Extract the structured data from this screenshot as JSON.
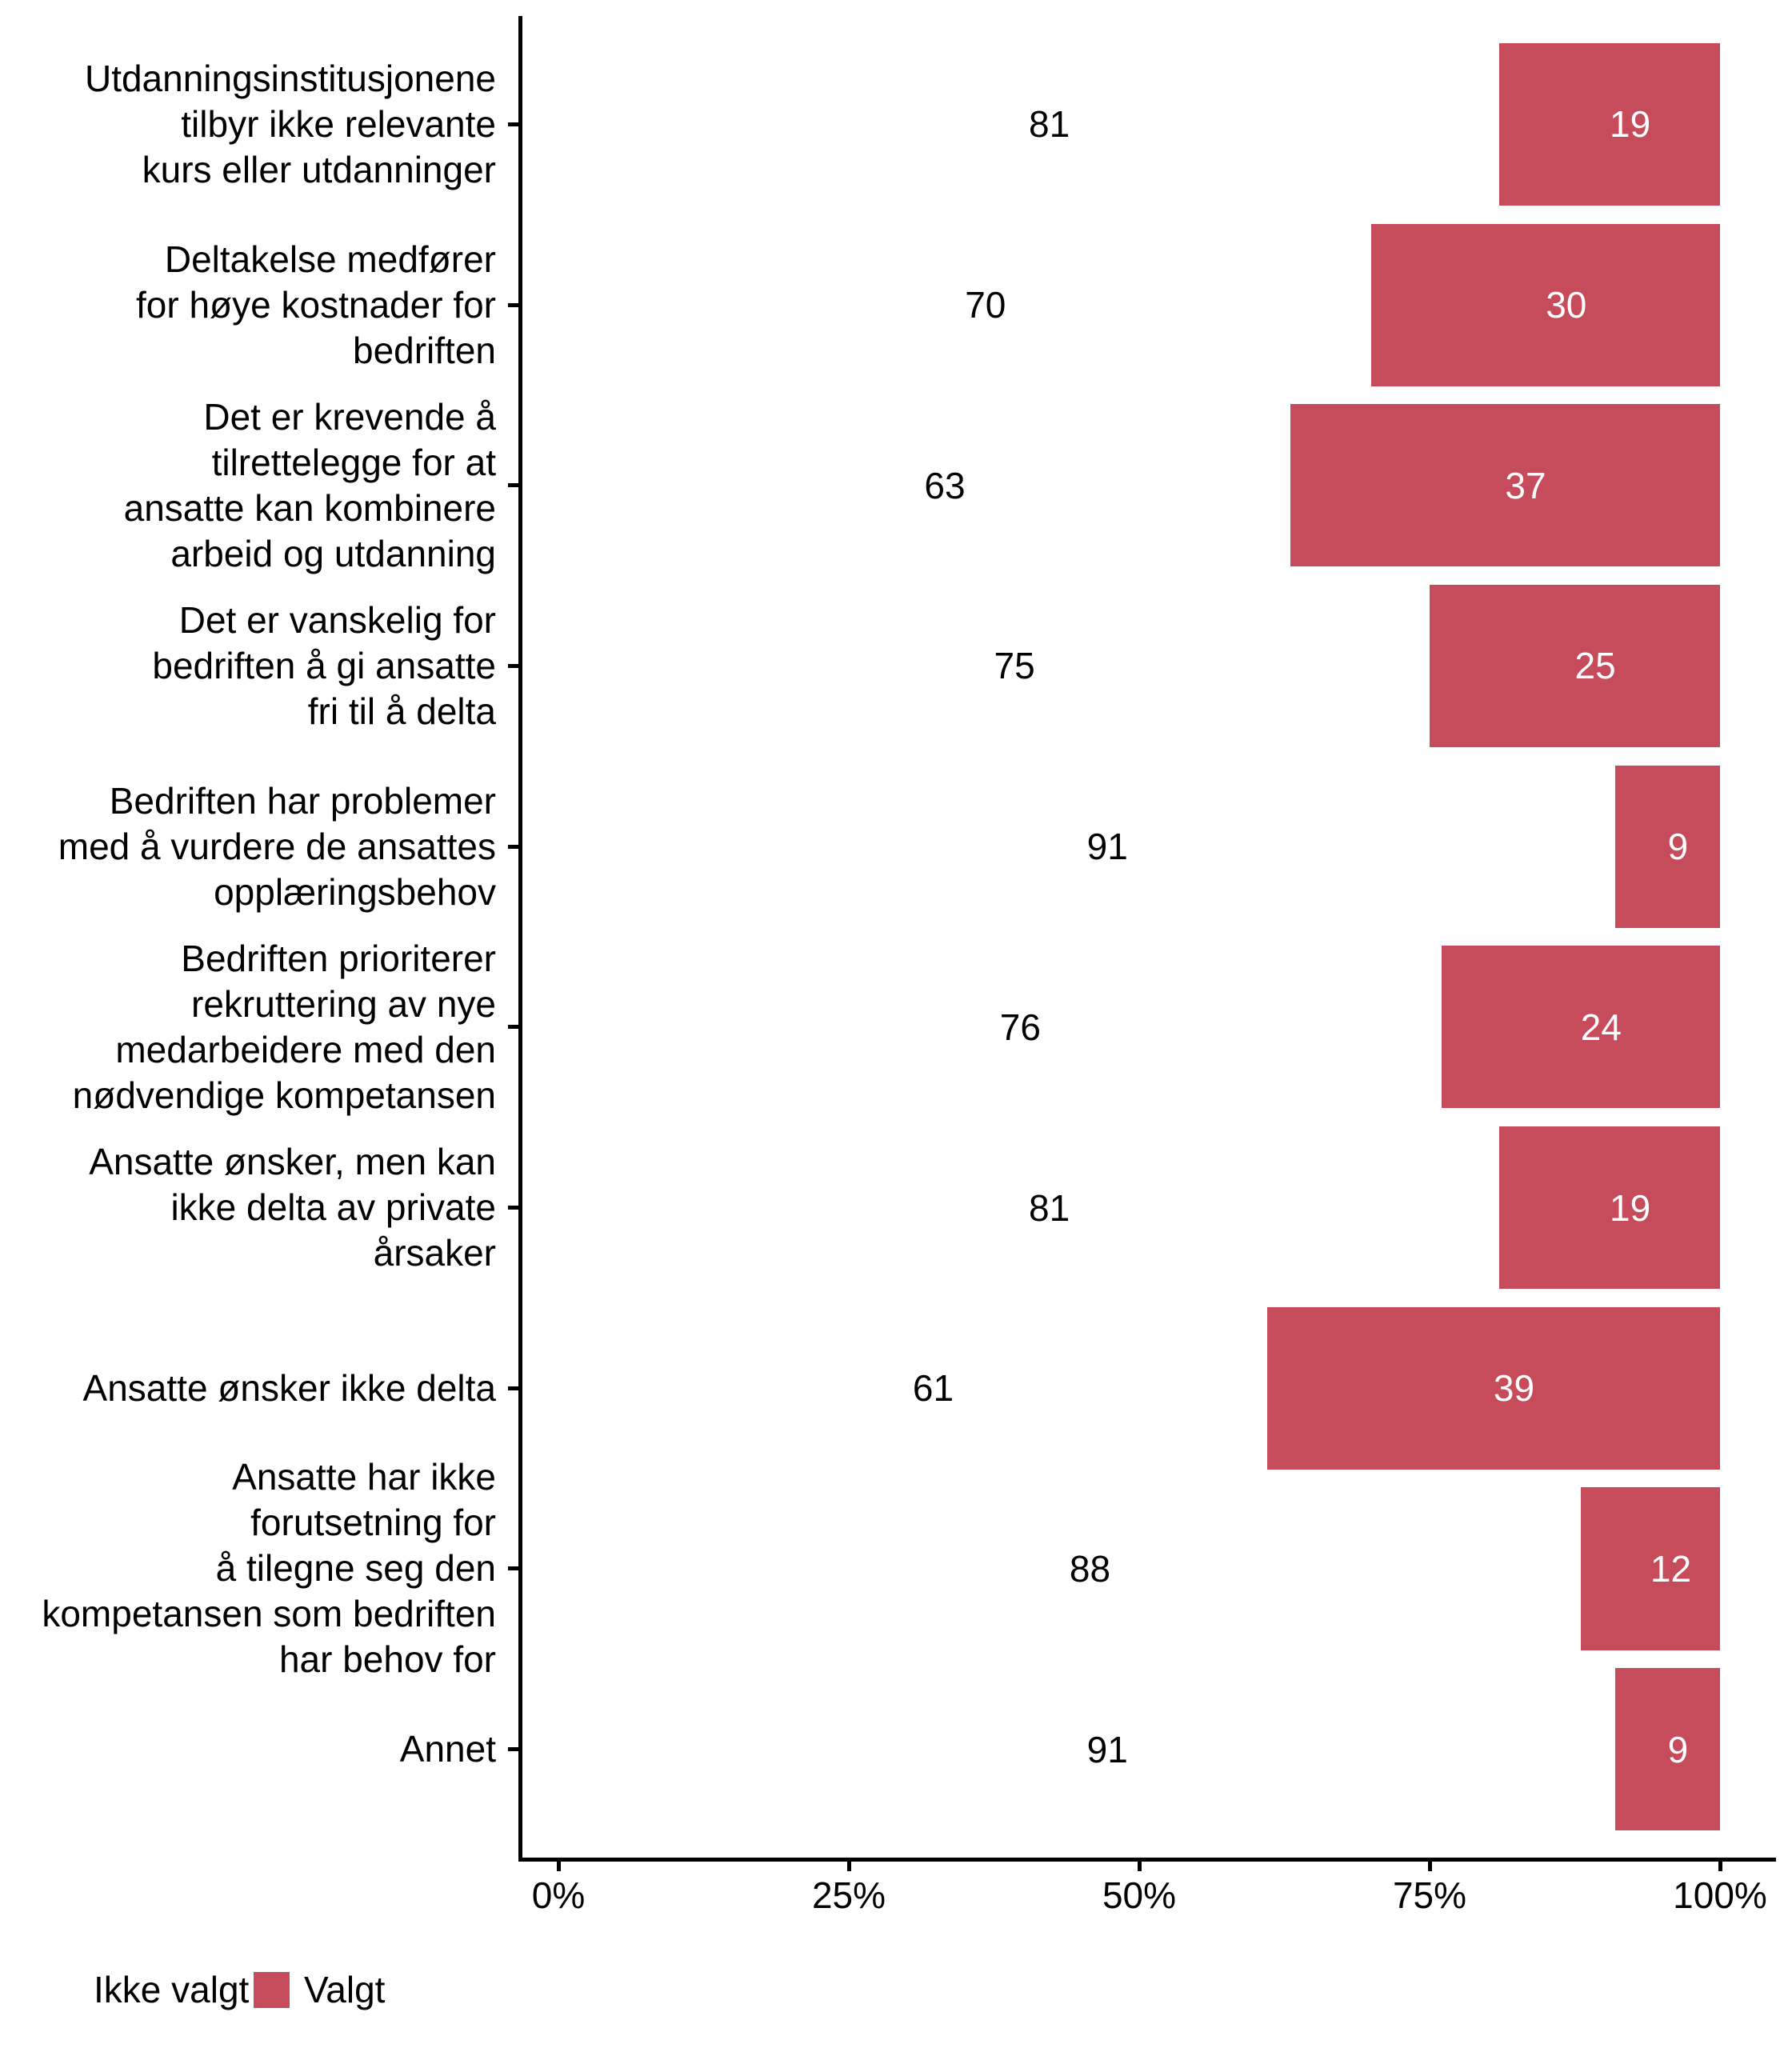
{
  "chart_data": {
    "type": "bar",
    "orientation": "horizontal",
    "stacked": true,
    "unit": "percent",
    "title": "",
    "xlabel": "",
    "ylabel": "",
    "x_range": [
      0,
      100
    ],
    "x_ticks": [
      "0%",
      "25%",
      "50%",
      "75%",
      "100%"
    ],
    "x_tick_values": [
      0,
      25,
      50,
      75,
      100
    ],
    "grid": false,
    "value_labels": "inside-segment-center",
    "legend_position": "bottom-left",
    "categories": [
      "Utdanningsinstitusjonene tilbyr ikke relevante kurs eller utdanninger",
      "Deltakelse medfører for høye kostnader for bedriften",
      "Det er krevende å tilrettelegge for at ansatte kan kombinere arbeid og utdanning",
      "Det er vanskelig for bedriften å gi ansatte fri til å delta",
      "Bedriften har problemer med å vurdere de ansattes opplæringsbehov",
      "Bedriften prioriterer rekruttering av nye medarbeidere med den nødvendige kompetansen",
      "Ansatte ønsker, men kan ikke delta av private årsaker",
      "Ansatte ønsker ikke delta",
      "Ansatte har ikke forutsetning for å tilegne seg den kompetansen som bedriften har behov for",
      "Annet"
    ],
    "category_lines": [
      [
        "Utdanningsinstitusjonene",
        "tilbyr ikke relevante",
        "kurs eller utdanninger"
      ],
      [
        "Deltakelse medfører",
        "for høye kostnader for",
        "bedriften"
      ],
      [
        "Det er krevende å",
        "tilrettelegge for at",
        "ansatte kan kombinere",
        "arbeid og utdanning"
      ],
      [
        "Det er vanskelig for",
        "bedriften å gi ansatte",
        "fri til å delta"
      ],
      [
        "Bedriften har problemer",
        "med å vurdere de ansattes",
        "opplæringsbehov"
      ],
      [
        "Bedriften prioriterer",
        "rekruttering av nye",
        "medarbeidere med den",
        "nødvendige kompetansen"
      ],
      [
        "Ansatte ønsker, men kan",
        "ikke delta av private",
        "årsaker"
      ],
      [
        "Ansatte ønsker ikke delta"
      ],
      [
        "Ansatte har ikke",
        "forutsetning for",
        "å tilegne seg den",
        "kompetansen som bedriften",
        "har behov for"
      ],
      [
        "Annet"
      ]
    ],
    "series": [
      {
        "name": "Ikke valgt",
        "color": "#FFFFFF",
        "label_color": "#000000",
        "values": [
          81,
          70,
          63,
          75,
          91,
          76,
          81,
          61,
          88,
          91
        ]
      },
      {
        "name": "Valgt",
        "color": "#C64B5B",
        "label_color": "#FFFFFF",
        "values": [
          19,
          30,
          37,
          25,
          9,
          24,
          19,
          39,
          12,
          9
        ]
      }
    ]
  },
  "legend": {
    "items": [
      {
        "label": "Ikke valgt",
        "color": "#FFFFFF"
      },
      {
        "label": "Valgt",
        "color": "#C64B5B"
      }
    ]
  }
}
